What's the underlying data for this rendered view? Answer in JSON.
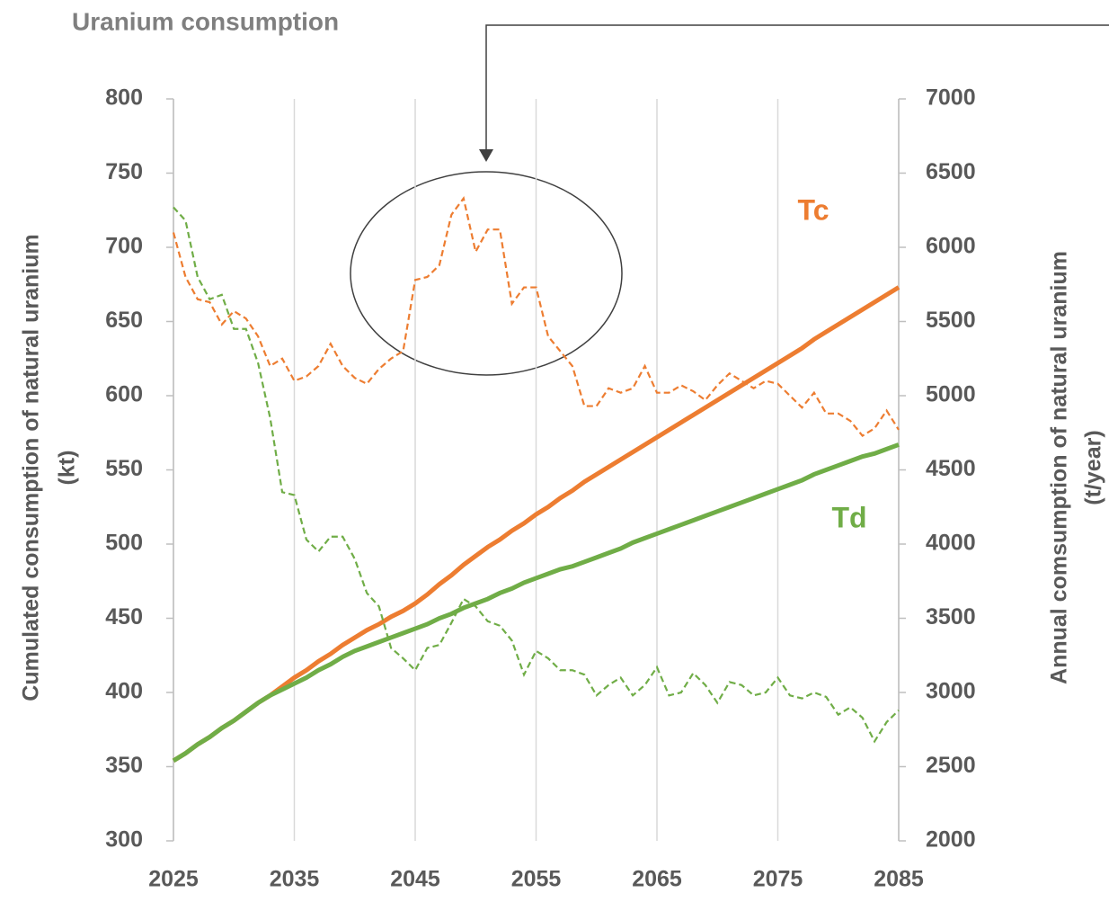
{
  "chart_data": {
    "type": "line",
    "title": "Uranium consumption",
    "ylabel": [
      "Cumulated consumption of natural uranium",
      "(kt)"
    ],
    "y2label": [
      "Annual comsumption of natural uranium",
      "(t/year)"
    ],
    "x": [
      2025,
      2026,
      2027,
      2028,
      2029,
      2030,
      2031,
      2032,
      2033,
      2034,
      2035,
      2036,
      2037,
      2038,
      2039,
      2040,
      2041,
      2042,
      2043,
      2044,
      2045,
      2046,
      2047,
      2048,
      2049,
      2050,
      2051,
      2052,
      2053,
      2054,
      2055,
      2056,
      2057,
      2058,
      2059,
      2060,
      2061,
      2062,
      2063,
      2064,
      2065,
      2066,
      2067,
      2068,
      2069,
      2070,
      2071,
      2072,
      2073,
      2074,
      2075,
      2076,
      2077,
      2078,
      2079,
      2080,
      2081,
      2082,
      2083,
      2084,
      2085
    ],
    "xlim": [
      2025,
      2085
    ],
    "xticks": [
      2025,
      2035,
      2045,
      2055,
      2065,
      2075,
      2085
    ],
    "ylim": [
      300,
      800
    ],
    "yticks": [
      300,
      350,
      400,
      450,
      500,
      550,
      600,
      650,
      700,
      750,
      800
    ],
    "y2lim": [
      2000,
      7000
    ],
    "y2ticks": [
      2000,
      2500,
      3000,
      3500,
      4000,
      4500,
      5000,
      5500,
      6000,
      6500,
      7000
    ],
    "grid": "x",
    "series": [
      {
        "color": "#ED7D31",
        "dashed": false,
        "values": [
          354,
          359,
          365,
          370,
          376,
          381,
          387,
          393,
          398,
          404,
          410,
          415,
          421,
          426,
          432,
          437,
          442,
          446,
          451,
          455,
          460,
          466,
          473,
          479,
          486,
          492,
          498,
          503,
          509,
          514,
          520,
          525,
          531,
          536,
          542,
          547,
          552,
          557,
          562,
          567,
          572,
          577,
          582,
          587,
          592,
          597,
          602,
          607,
          612,
          617,
          622,
          627,
          632,
          638,
          643,
          648,
          653,
          658,
          663,
          668,
          673
        ]
      },
      {
        "color": "#70AD47",
        "dashed": false,
        "values": [
          354,
          359,
          365,
          370,
          376,
          381,
          387,
          393,
          398,
          402,
          406,
          410,
          415,
          419,
          424,
          428,
          431,
          434,
          437,
          440,
          443,
          446,
          450,
          453,
          457,
          460,
          463,
          467,
          470,
          474,
          477,
          480,
          483,
          485,
          488,
          491,
          494,
          497,
          501,
          504,
          507,
          510,
          513,
          516,
          519,
          522,
          525,
          528,
          531,
          534,
          537,
          540,
          543,
          547,
          550,
          553,
          556,
          559,
          561,
          564,
          567
        ]
      },
      {
        "color": "#ED7D31",
        "dashed": true,
        "axis": "y2",
        "values": [
          6100,
          5800,
          5650,
          5630,
          5480,
          5570,
          5520,
          5400,
          5200,
          5250,
          5100,
          5130,
          5200,
          5350,
          5200,
          5120,
          5080,
          5180,
          5250,
          5300,
          5780,
          5800,
          5880,
          6220,
          6330,
          5970,
          6120,
          6120,
          5620,
          5730,
          5730,
          5400,
          5300,
          5200,
          4930,
          4930,
          5050,
          5020,
          5050,
          5200,
          5020,
          5020,
          5070,
          5030,
          4970,
          5070,
          5150,
          5100,
          5050,
          5100,
          5080,
          5000,
          4920,
          5020,
          4880,
          4880,
          4830,
          4730,
          4780,
          4900,
          4770
        ]
      },
      {
        "color": "#70AD47",
        "dashed": true,
        "axis": "y2",
        "values": [
          6270,
          6180,
          5800,
          5650,
          5680,
          5450,
          5450,
          5220,
          4850,
          4350,
          4330,
          4030,
          3950,
          4050,
          4050,
          3900,
          3670,
          3580,
          3300,
          3230,
          3150,
          3300,
          3320,
          3470,
          3630,
          3580,
          3480,
          3450,
          3350,
          3120,
          3280,
          3230,
          3150,
          3150,
          3120,
          2980,
          3050,
          3100,
          2980,
          3050,
          3170,
          2980,
          3000,
          3130,
          3050,
          2930,
          3070,
          3050,
          2980,
          3000,
          3100,
          2980,
          2960,
          3000,
          2970,
          2850,
          2900,
          2830,
          2670,
          2800,
          2880
        ]
      }
    ],
    "annotations": [
      {
        "text": "Tc",
        "color": "#ED7D31"
      },
      {
        "text": "Td",
        "color": "#70AD47"
      }
    ]
  }
}
